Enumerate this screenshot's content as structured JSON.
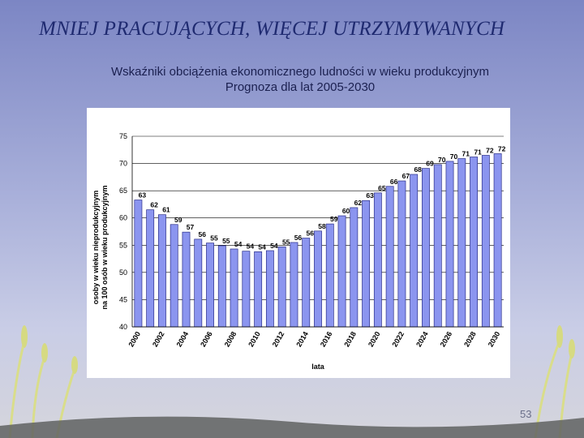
{
  "slide": {
    "title": "MNIEJ PRACUJĄCYCH, WIĘCEJ UTRZYMYWANYCH",
    "subtitle_line1": "Wskaźniki obciążenia ekonomicznego ludności w wieku produkcyjnym",
    "subtitle_line2": "Prognoza dla lat 2005-2030",
    "page_number": "53"
  },
  "colors": {
    "bar_fill": "#8b95ef",
    "bar_stroke": "#2b2f8a",
    "grid": "#000000",
    "text": "#000000"
  },
  "chart_data": {
    "type": "bar",
    "title": "",
    "xlabel": "lata",
    "ylabel_line1": "osoby w wieku nieprodukcyjnym",
    "ylabel_line2": "na 100 osób w wieku produkcyjnym",
    "ylim": [
      40,
      75
    ],
    "yticks": [
      40,
      45,
      50,
      55,
      60,
      65,
      70,
      75
    ],
    "grid": true,
    "categories": [
      "2000",
      "2001",
      "2002",
      "2003",
      "2004",
      "2005",
      "2006",
      "2007",
      "2008",
      "2009",
      "2010",
      "2011",
      "2012",
      "2013",
      "2014",
      "2015",
      "2016",
      "2017",
      "2018",
      "2019",
      "2020",
      "2021",
      "2022",
      "2023",
      "2024",
      "2025",
      "2026",
      "2027",
      "2028",
      "2029",
      "2030"
    ],
    "xtick_labels": [
      "2000",
      "2002",
      "2004",
      "2006",
      "2008",
      "2010",
      "2012",
      "2014",
      "2016",
      "2018",
      "2020",
      "2022",
      "2024",
      "2026",
      "2028",
      "2030"
    ],
    "values": [
      63.3,
      61.5,
      60.6,
      58.8,
      57.4,
      56.1,
      55.4,
      54.9,
      54.3,
      53.9,
      53.8,
      54.0,
      54.7,
      55.5,
      56.3,
      57.6,
      58.9,
      60.4,
      61.9,
      63.2,
      64.6,
      65.8,
      66.8,
      68.0,
      69.1,
      69.8,
      70.4,
      70.9,
      71.2,
      71.5,
      71.8
    ],
    "data_labels": [
      "63",
      "62",
      "61",
      "59",
      "57",
      "56",
      "55",
      "55",
      "54",
      "54",
      "54",
      "54",
      "55",
      "56",
      "56",
      "58",
      "59",
      "60",
      "62",
      "63",
      "65",
      "66",
      "67",
      "68",
      "69",
      "70",
      "70",
      "71",
      "71",
      "72",
      "72"
    ]
  }
}
